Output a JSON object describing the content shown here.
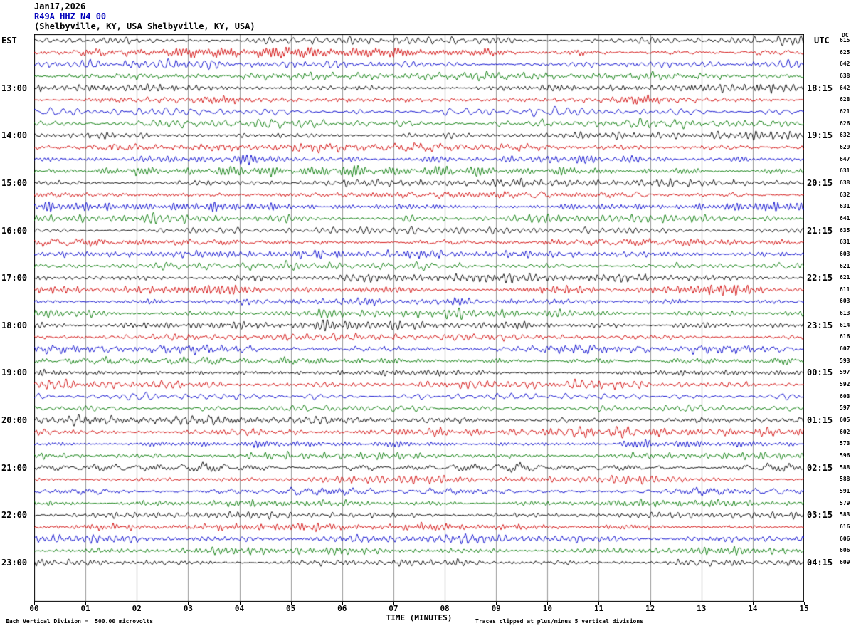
{
  "title": {
    "date": "Jan17,2026",
    "station": "R49A HHZ N4 00",
    "location": "(Shelbyville, KY, USA Shelbyville, KY, USA)"
  },
  "axes": {
    "left_header": "EST",
    "right_header": "UTC",
    "dc_header": "DC",
    "x_axis_title": "TIME (MINUTES)",
    "x_ticks": [
      "00",
      "01",
      "02",
      "03",
      "04",
      "05",
      "06",
      "07",
      "08",
      "09",
      "10",
      "11",
      "12",
      "13",
      "14",
      "15"
    ]
  },
  "footer": {
    "left": "Each Vertical Division =  500.00 microvolts",
    "right": "Traces clipped at plus/minus 5 vertical divisions"
  },
  "colors": {
    "background": "#ffffff",
    "grid": "#999999",
    "border": "#000000",
    "station_title": "#0000bb",
    "trace_color_cycle": [
      "#000000",
      "#d00000",
      "#0000cc",
      "#007700"
    ]
  },
  "chart_data": {
    "type": "line",
    "kind": "seismogram-helicorder",
    "x_range_minutes": [
      0,
      15
    ],
    "minutes_per_row": 15,
    "rows_per_hour": 4,
    "trace_character": "continuous ambient microseismic noise, amplitude about plus/minus half a vertical division with slow bursts",
    "clip_limit_divisions": 5,
    "vertical_division_microvolts": 500.0,
    "trace_color_cycle": [
      "#000000",
      "#d00000",
      "#0000cc",
      "#007700"
    ],
    "rows": [
      {
        "est": "",
        "utc": "",
        "dc": 615
      },
      {
        "est": "",
        "utc": "",
        "dc": 625
      },
      {
        "est": "",
        "utc": "",
        "dc": 642
      },
      {
        "est": "",
        "utc": "",
        "dc": 638
      },
      {
        "est": "13:00",
        "utc": "18:15",
        "dc": 642
      },
      {
        "est": "",
        "utc": "",
        "dc": 628
      },
      {
        "est": "",
        "utc": "",
        "dc": 621
      },
      {
        "est": "",
        "utc": "",
        "dc": 626
      },
      {
        "est": "14:00",
        "utc": "19:15",
        "dc": 632
      },
      {
        "est": "",
        "utc": "",
        "dc": 629
      },
      {
        "est": "",
        "utc": "",
        "dc": 647
      },
      {
        "est": "",
        "utc": "",
        "dc": 631
      },
      {
        "est": "15:00",
        "utc": "20:15",
        "dc": 638
      },
      {
        "est": "",
        "utc": "",
        "dc": 632
      },
      {
        "est": "",
        "utc": "",
        "dc": 631
      },
      {
        "est": "",
        "utc": "",
        "dc": 641
      },
      {
        "est": "16:00",
        "utc": "21:15",
        "dc": 635
      },
      {
        "est": "",
        "utc": "",
        "dc": 631
      },
      {
        "est": "",
        "utc": "",
        "dc": 603
      },
      {
        "est": "",
        "utc": "",
        "dc": 621
      },
      {
        "est": "17:00",
        "utc": "22:15",
        "dc": 621
      },
      {
        "est": "",
        "utc": "",
        "dc": 611
      },
      {
        "est": "",
        "utc": "",
        "dc": 603
      },
      {
        "est": "",
        "utc": "",
        "dc": 613
      },
      {
        "est": "18:00",
        "utc": "23:15",
        "dc": 614
      },
      {
        "est": "",
        "utc": "",
        "dc": 616
      },
      {
        "est": "",
        "utc": "",
        "dc": 607
      },
      {
        "est": "",
        "utc": "",
        "dc": 593
      },
      {
        "est": "19:00",
        "utc": "00:15",
        "dc": 597
      },
      {
        "est": "",
        "utc": "",
        "dc": 592
      },
      {
        "est": "",
        "utc": "",
        "dc": 603
      },
      {
        "est": "",
        "utc": "",
        "dc": 597
      },
      {
        "est": "20:00",
        "utc": "01:15",
        "dc": 605
      },
      {
        "est": "",
        "utc": "",
        "dc": 602
      },
      {
        "est": "",
        "utc": "",
        "dc": 573
      },
      {
        "est": "",
        "utc": "",
        "dc": 596
      },
      {
        "est": "21:00",
        "utc": "02:15",
        "dc": 588
      },
      {
        "est": "",
        "utc": "",
        "dc": 588
      },
      {
        "est": "",
        "utc": "",
        "dc": 591
      },
      {
        "est": "",
        "utc": "",
        "dc": 579
      },
      {
        "est": "22:00",
        "utc": "03:15",
        "dc": 583
      },
      {
        "est": "",
        "utc": "",
        "dc": 616
      },
      {
        "est": "",
        "utc": "",
        "dc": 606
      },
      {
        "est": "",
        "utc": "",
        "dc": 606
      },
      {
        "est": "23:00",
        "utc": "04:15",
        "dc": 609
      }
    ]
  }
}
